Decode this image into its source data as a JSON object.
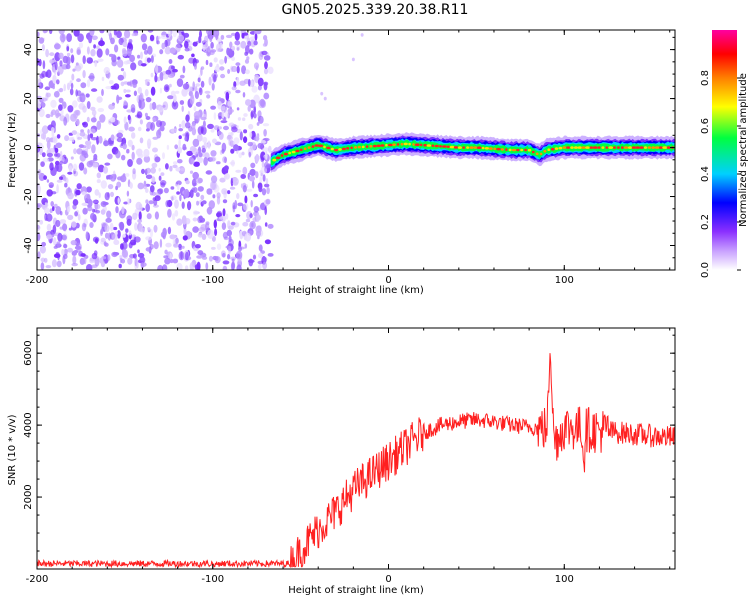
{
  "title": "GN05.2025.339.20.38.R11",
  "chart_data": [
    {
      "type": "heatmap",
      "name": "spectrogram",
      "xlabel": "Height of straight line (km)",
      "ylabel": "Frequency (Hz)",
      "xlim": [
        -200,
        163
      ],
      "ylim": [
        -50,
        48
      ],
      "xticks": [
        -200,
        -100,
        0,
        100
      ],
      "yticks": [
        -40,
        -20,
        0,
        20,
        40
      ],
      "noise_region_x": [
        -200,
        -67
      ],
      "tone_region_x": [
        -67,
        163
      ],
      "tone_frequency_path": {
        "x": [
          -67,
          -60,
          -50,
          -40,
          -30,
          -20,
          -10,
          0,
          10,
          20,
          30,
          40,
          50,
          60,
          70,
          80,
          86,
          90,
          100,
          110,
          120,
          130,
          140,
          150,
          163
        ],
        "y": [
          -6,
          -3,
          -1,
          1,
          -1,
          0,
          0.5,
          1,
          1.5,
          1,
          0.5,
          0,
          0,
          -0.5,
          -1,
          -1,
          -3,
          -1,
          0,
          0,
          0,
          0,
          0,
          0,
          0
        ]
      },
      "colorbar": {
        "label": "Normalized spectral amplitude",
        "range": [
          0,
          1
        ],
        "ticks": [
          0.0,
          0.2,
          0.4,
          0.6,
          0.8
        ],
        "tick_labels": [
          "0.0",
          "0.2",
          "0.4",
          "0.6",
          "0.8"
        ],
        "colors": [
          "#ffffff",
          "#8b30ff",
          "#0000ff",
          "#00e0ff",
          "#00ff40",
          "#ffff00",
          "#ff8000",
          "#ff0000",
          "#ff00a0"
        ]
      }
    },
    {
      "type": "line",
      "name": "snr",
      "xlabel": "Height of straight line (km)",
      "ylabel": "SNR (10 * v/v)",
      "xlim": [
        -200,
        163
      ],
      "ylim": [
        0,
        6700
      ],
      "xticks": [
        -200,
        -100,
        0,
        100
      ],
      "yticks": [
        2000,
        4000,
        6000
      ],
      "color": "#ff2020",
      "envelope": {
        "x": [
          -200,
          -100,
          -56,
          -40,
          -30,
          -20,
          -10,
          0,
          10,
          20,
          30,
          40,
          50,
          60,
          70,
          80,
          90,
          92,
          94,
          100,
          110,
          120,
          130,
          140,
          150,
          163
        ],
        "y": [
          150,
          150,
          150,
          1100,
          1600,
          2200,
          2600,
          3000,
          3400,
          3800,
          4000,
          4100,
          4150,
          4100,
          4000,
          3950,
          3900,
          5800,
          3500,
          3950,
          3900,
          3850,
          3800,
          3750,
          3700,
          3650
        ]
      }
    }
  ]
}
